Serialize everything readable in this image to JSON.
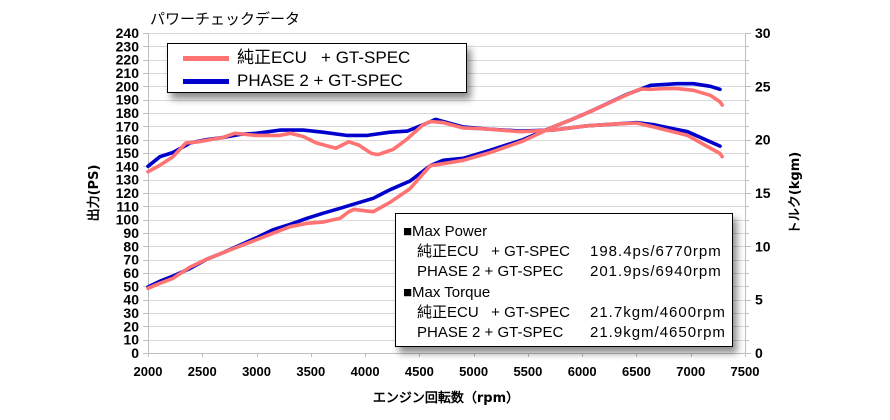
{
  "chart_data": {
    "type": "line",
    "title": "パワーチェックデータ",
    "xlabel": "エンジン回転数（rpm）",
    "ylabel": "出力(PS)",
    "y2label": "トルク(kgm)",
    "xlim": [
      2000,
      7500
    ],
    "ylim": [
      0,
      240
    ],
    "y2lim": [
      0,
      30
    ],
    "x_ticks": [
      2000,
      2500,
      3000,
      3500,
      4000,
      4500,
      5000,
      5500,
      6000,
      6500,
      7000,
      7500
    ],
    "y_ticks": [
      0,
      10,
      20,
      30,
      40,
      50,
      60,
      70,
      80,
      90,
      100,
      110,
      120,
      130,
      140,
      150,
      160,
      170,
      180,
      190,
      200,
      210,
      220,
      230,
      240
    ],
    "y2_ticks": [
      0,
      5,
      10,
      15,
      20,
      25,
      30
    ],
    "grid": true,
    "legend_position": "top-left",
    "series": [
      {
        "name": "純正ECU   + GT-SPEC",
        "color": "#FF7373",
        "power": [
          [
            2000,
            48.5
          ],
          [
            2100,
            52
          ],
          [
            2230,
            56
          ],
          [
            2390,
            64.5
          ],
          [
            2540,
            70.3
          ],
          [
            2700,
            75.5
          ],
          [
            2850,
            80.3
          ],
          [
            3000,
            85
          ],
          [
            3150,
            89.8
          ],
          [
            3310,
            94.7
          ],
          [
            3465,
            97.3
          ],
          [
            3610,
            98.2
          ],
          [
            3770,
            101
          ],
          [
            3850,
            106
          ],
          [
            3900,
            107.8
          ],
          [
            3960,
            107
          ],
          [
            4075,
            106
          ],
          [
            4230,
            113
          ],
          [
            4415,
            123.3
          ],
          [
            4600,
            140.5
          ],
          [
            4720,
            142
          ],
          [
            4905,
            144.5
          ],
          [
            5150,
            150.3
          ],
          [
            5455,
            159
          ],
          [
            5730,
            169.5
          ],
          [
            5900,
            175
          ],
          [
            6100,
            182
          ],
          [
            6415,
            193.8
          ],
          [
            6535,
            198
          ],
          [
            6630,
            197.8
          ],
          [
            6770,
            198.4
          ],
          [
            6875,
            198.3
          ],
          [
            7025,
            197
          ],
          [
            7180,
            193.3
          ],
          [
            7270,
            188.3
          ],
          [
            7290,
            186
          ]
        ],
        "torque": [
          [
            2000,
            17.0
          ],
          [
            2110,
            17.6
          ],
          [
            2230,
            18.4
          ],
          [
            2350,
            19.7
          ],
          [
            2460,
            19.8
          ],
          [
            2690,
            20.2
          ],
          [
            2800,
            20.6
          ],
          [
            3000,
            20.4
          ],
          [
            3215,
            20.4
          ],
          [
            3310,
            20.6
          ],
          [
            3430,
            20.3
          ],
          [
            3550,
            19.7
          ],
          [
            3730,
            19.2
          ],
          [
            3850,
            19.8
          ],
          [
            3940,
            19.5
          ],
          [
            4060,
            18.7
          ],
          [
            4120,
            18.6
          ],
          [
            4260,
            19.1
          ],
          [
            4380,
            20.0
          ],
          [
            4535,
            21.4
          ],
          [
            4600,
            21.7
          ],
          [
            4720,
            21.6
          ],
          [
            4900,
            21.1
          ],
          [
            5120,
            21.0
          ],
          [
            5430,
            20.75
          ],
          [
            5730,
            20.9
          ],
          [
            6045,
            21.3
          ],
          [
            6350,
            21.5
          ],
          [
            6505,
            21.55
          ],
          [
            6655,
            21.2
          ],
          [
            6970,
            20.4
          ],
          [
            7270,
            18.7
          ],
          [
            7290,
            18.4
          ]
        ]
      },
      {
        "name": "PHASE 2 + GT-SPEC",
        "color": "#0000CC",
        "power": [
          [
            2000,
            49.5
          ],
          [
            2100,
            53.5
          ],
          [
            2230,
            57.7
          ],
          [
            2390,
            63.5
          ],
          [
            2540,
            70.3
          ],
          [
            2700,
            75.5
          ],
          [
            2850,
            81
          ],
          [
            3000,
            86.5
          ],
          [
            3150,
            92.3
          ],
          [
            3310,
            96.5
          ],
          [
            3465,
            101
          ],
          [
            3610,
            104.8
          ],
          [
            3770,
            108.5
          ],
          [
            3890,
            111.5
          ],
          [
            4075,
            116
          ],
          [
            4230,
            122.5
          ],
          [
            4415,
            129
          ],
          [
            4600,
            140.5
          ],
          [
            4720,
            144.5
          ],
          [
            4905,
            146
          ],
          [
            5150,
            152
          ],
          [
            5455,
            160
          ],
          [
            5730,
            169.5
          ],
          [
            5900,
            175
          ],
          [
            6100,
            182
          ],
          [
            6415,
            194
          ],
          [
            6630,
            200.8
          ],
          [
            6875,
            202
          ],
          [
            7025,
            202
          ],
          [
            7180,
            200
          ],
          [
            7270,
            197.8
          ]
        ],
        "torque": [
          [
            2000,
            17.5
          ],
          [
            2110,
            18.4
          ],
          [
            2230,
            18.8
          ],
          [
            2390,
            19.7
          ],
          [
            2540,
            20.0
          ],
          [
            2690,
            20.2
          ],
          [
            2850,
            20.5
          ],
          [
            3000,
            20.6
          ],
          [
            3215,
            20.9
          ],
          [
            3430,
            20.9
          ],
          [
            3610,
            20.7
          ],
          [
            3830,
            20.4
          ],
          [
            4020,
            20.4
          ],
          [
            4230,
            20.7
          ],
          [
            4390,
            20.8
          ],
          [
            4535,
            21.4
          ],
          [
            4650,
            21.9
          ],
          [
            4720,
            21.7
          ],
          [
            4900,
            21.2
          ],
          [
            5120,
            21.0
          ],
          [
            5430,
            20.8
          ],
          [
            5730,
            20.9
          ],
          [
            6045,
            21.3
          ],
          [
            6350,
            21.5
          ],
          [
            6505,
            21.6
          ],
          [
            6655,
            21.4
          ],
          [
            6970,
            20.75
          ],
          [
            7270,
            19.4
          ]
        ]
      }
    ]
  },
  "summary": {
    "sections": [
      {
        "heading": "■Max Power",
        "rows": [
          {
            "label": "純正ECU   + GT-SPEC",
            "value": "198.4ps/6770rpm"
          },
          {
            "label": "PHASE 2 + GT-SPEC",
            "value": "201.9ps/6940rpm"
          }
        ]
      },
      {
        "heading": "■Max Torque",
        "rows": [
          {
            "label": "純正ECU   + GT-SPEC",
            "value": "21.7kgm/4600rpm"
          },
          {
            "label": "PHASE 2 + GT-SPEC",
            "value": "21.9kgm/4650rpm"
          }
        ]
      }
    ]
  },
  "colors": {
    "grid": "#d9d9d9",
    "axis": "#bfbfbf"
  }
}
